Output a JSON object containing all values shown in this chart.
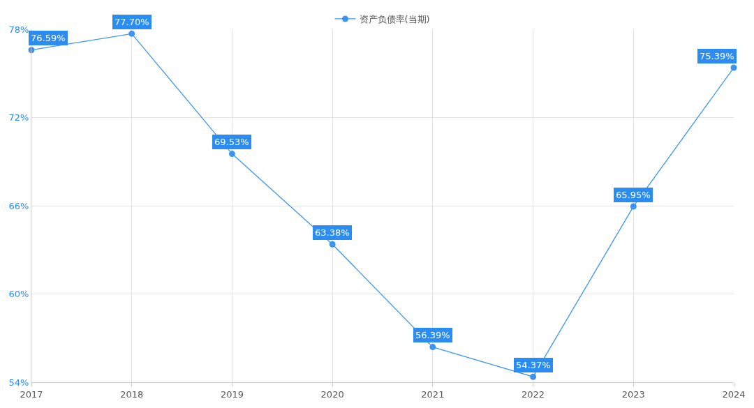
{
  "chart_data": {
    "type": "line",
    "categories": [
      "2017",
      "2018",
      "2019",
      "2020",
      "2021",
      "2022",
      "2023",
      "2024"
    ],
    "series": [
      {
        "name": "资产负债率(当期)",
        "color": "#3d94f0",
        "values": [
          76.59,
          77.7,
          69.53,
          63.38,
          56.39,
          54.37,
          65.95,
          75.39
        ],
        "value_labels": [
          "76.59%",
          "77.70%",
          "69.53%",
          "63.38%",
          "56.39%",
          "54.37%",
          "65.95%",
          "75.39%"
        ]
      }
    ],
    "ylim": [
      54,
      78
    ],
    "yticks": [
      {
        "value": 54,
        "label": "54%"
      },
      {
        "value": 60,
        "label": "60%"
      },
      {
        "value": 66,
        "label": "66%"
      },
      {
        "value": 72,
        "label": "72%"
      },
      {
        "value": 78,
        "label": "78%"
      }
    ],
    "grid": true,
    "legend": "top",
    "marker": "circle",
    "line_style": "solid"
  }
}
